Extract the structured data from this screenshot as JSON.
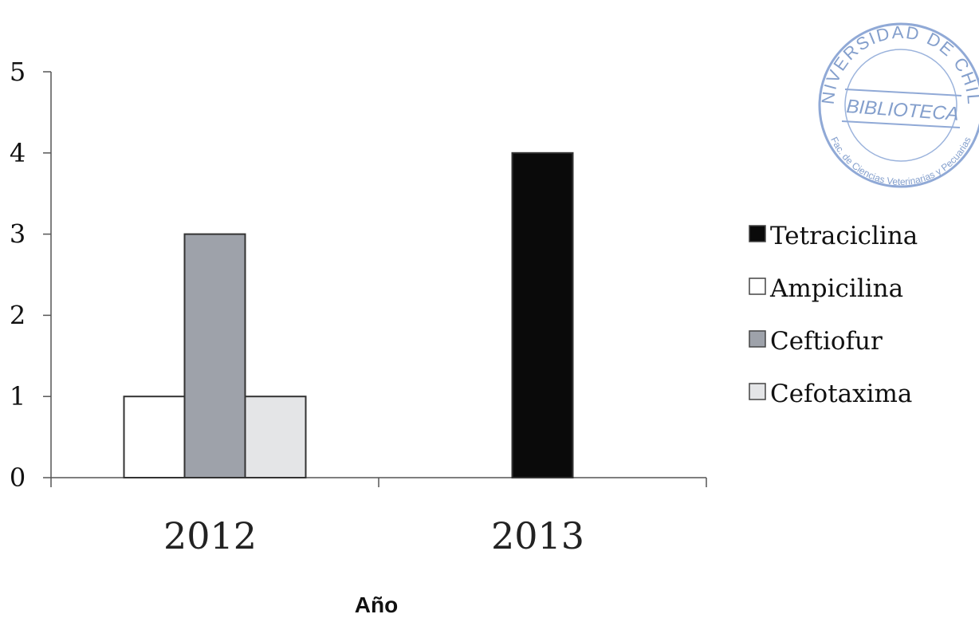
{
  "chart_data": {
    "type": "bar",
    "categories": [
      "2012",
      "2013"
    ],
    "series": [
      {
        "name": "Tetraciclina",
        "values": [
          0,
          4
        ],
        "color": "#0a0a0a"
      },
      {
        "name": "Ampicilina",
        "values": [
          1,
          0
        ],
        "color": "#ffffff"
      },
      {
        "name": "Ceftiofur",
        "values": [
          3,
          0
        ],
        "color": "#9ea2aa"
      },
      {
        "name": "Cefotaxima",
        "values": [
          1,
          0
        ],
        "color": "#e4e5e7"
      }
    ],
    "title": "",
    "xlabel": "Año",
    "ylabel": "",
    "ylim": [
      0,
      5
    ],
    "yticks": [
      "0",
      "1",
      "2",
      "3",
      "4",
      "5"
    ],
    "grid": false,
    "legend_position": "right"
  },
  "stamp": {
    "top_text": "UNIVERSIDAD DE CHILE",
    "center_text": "BIBLIOTECA",
    "bottom_text": "Fac. de Ciencias Veterinarias y Pecuarias"
  }
}
